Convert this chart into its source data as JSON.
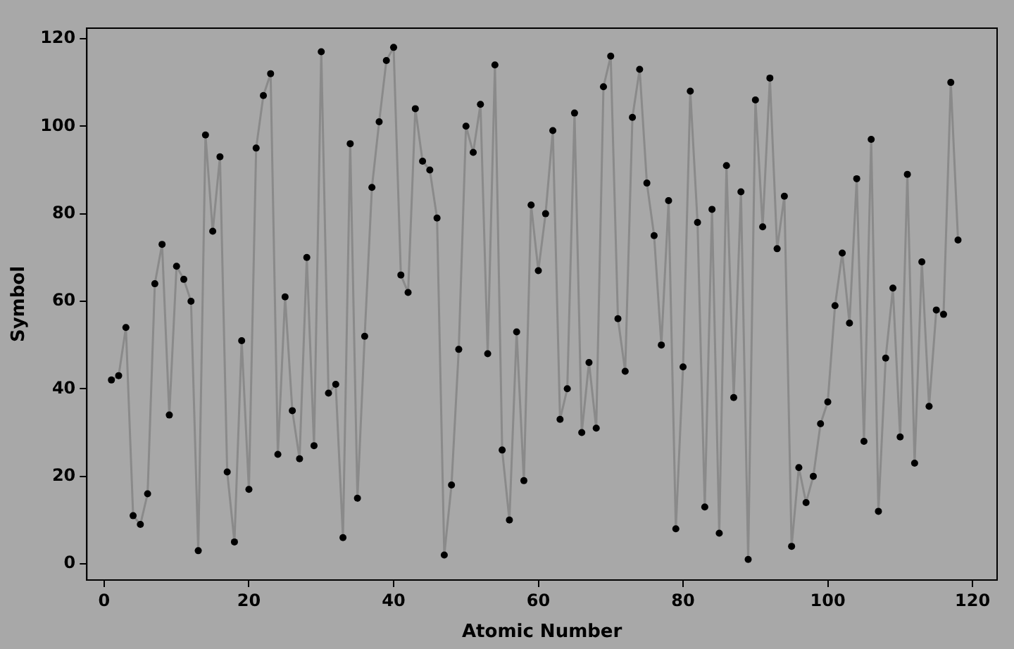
{
  "chart_data": {
    "type": "line",
    "xlabel": "Atomic Number",
    "ylabel": "Symbol",
    "x": [
      1,
      2,
      3,
      4,
      5,
      6,
      7,
      8,
      9,
      10,
      11,
      12,
      13,
      14,
      15,
      16,
      17,
      18,
      19,
      20,
      21,
      22,
      23,
      24,
      25,
      26,
      27,
      28,
      29,
      30,
      31,
      32,
      33,
      34,
      35,
      36,
      37,
      38,
      39,
      40,
      41,
      42,
      43,
      44,
      45,
      46,
      47,
      48,
      49,
      50,
      51,
      52,
      53,
      54,
      55,
      56,
      57,
      58,
      59,
      60,
      61,
      62,
      63,
      64,
      65,
      66,
      67,
      68,
      69,
      70,
      71,
      72,
      73,
      74,
      75,
      76,
      77,
      78,
      79,
      80,
      81,
      82,
      83,
      84,
      85,
      86,
      87,
      88,
      89,
      90,
      91,
      92,
      93,
      94,
      95,
      96,
      97,
      98,
      99,
      100,
      101,
      102,
      103,
      104,
      105,
      106,
      107,
      108,
      109,
      110,
      111,
      112,
      113,
      114,
      115,
      116,
      117,
      118
    ],
    "series": [
      {
        "color": "#8a8a8a",
        "values": [
          42,
          43,
          54,
          11,
          9,
          16,
          64,
          73,
          34,
          68,
          65,
          60,
          3,
          98,
          76,
          93,
          21,
          5,
          51,
          17,
          95,
          107,
          112,
          25,
          61,
          35,
          24,
          70,
          27,
          117,
          39,
          41,
          6,
          96,
          15,
          52,
          86,
          101,
          115,
          118,
          66,
          62,
          104,
          92,
          90,
          79,
          2,
          18,
          49,
          100,
          94,
          105,
          48,
          114,
          26,
          10,
          53,
          19,
          82,
          67,
          80,
          99,
          33,
          40,
          103,
          30,
          46,
          31,
          109,
          116,
          56,
          44,
          102,
          113,
          87,
          75,
          50,
          83,
          8,
          45,
          108,
          78,
          13,
          81,
          7,
          91,
          38,
          85,
          1,
          106,
          77,
          111,
          72,
          84,
          4,
          22,
          14,
          20,
          32,
          37,
          59,
          71,
          55,
          88,
          28,
          97,
          12,
          47,
          63,
          29,
          89,
          23,
          69,
          36,
          58,
          57,
          110,
          74
        ]
      }
    ],
    "xlim": [
      -2.4,
      123.4
    ],
    "xticks": [
      0,
      20,
      40,
      60,
      80,
      100,
      120
    ],
    "ylim": [
      -3.7,
      122.4
    ],
    "yticks": [
      0,
      20,
      40,
      60,
      80,
      100,
      120
    ],
    "grid": false,
    "legend": false,
    "marker": "circle",
    "line_style": "solid"
  }
}
